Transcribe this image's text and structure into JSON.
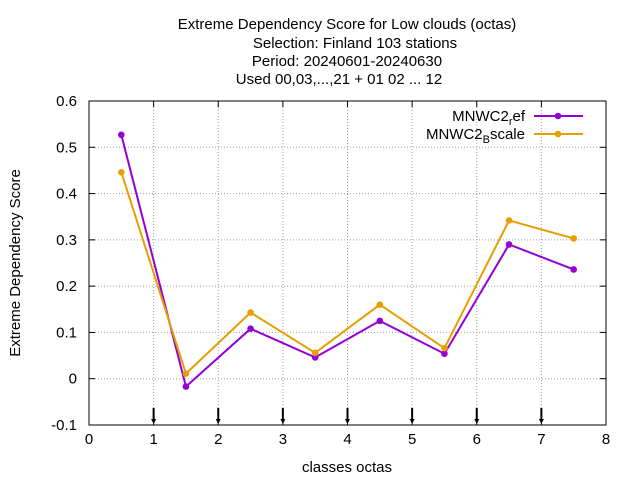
{
  "chart_data": {
    "type": "line",
    "title_lines": [
      "Extreme Dependency Score  for Low clouds (octas)",
      "Selection: Finland     103 stations",
      "Period: 20240601-20240630",
      "Used 00,03,...,21 + 01 02 ... 12"
    ],
    "xlabel": "classes octas",
    "ylabel": "Extreme Dependency Score",
    "xlim": [
      0,
      8
    ],
    "ylim": [
      -0.1,
      0.6
    ],
    "x_ticks": [
      "0",
      "1",
      "2",
      "3",
      "4",
      "5",
      "6",
      "7",
      "8"
    ],
    "y_ticks": [
      "-0.1",
      "0",
      "0.1",
      "0.2",
      "0.3",
      "0.4",
      "0.5",
      "0.6"
    ],
    "grid": true,
    "legend_position": "top-right",
    "x": [
      0.5,
      1.5,
      2.5,
      3.5,
      4.5,
      5.5,
      6.5,
      7.5
    ],
    "class_markers_x": [
      1,
      2,
      3,
      4,
      5,
      6,
      7
    ],
    "series": [
      {
        "name_main": "MNWC2",
        "name_sub": "r",
        "name_rest": "ef",
        "color": "#9400d3",
        "values": [
          0.527,
          -0.017,
          0.108,
          0.046,
          0.125,
          0.054,
          0.29,
          0.236
        ]
      },
      {
        "name_main": "MNWC2",
        "name_sub": "B",
        "name_rest": "scale",
        "color": "#e69f00",
        "values": [
          0.446,
          0.011,
          0.143,
          0.056,
          0.16,
          0.066,
          0.342,
          0.303
        ]
      }
    ]
  }
}
